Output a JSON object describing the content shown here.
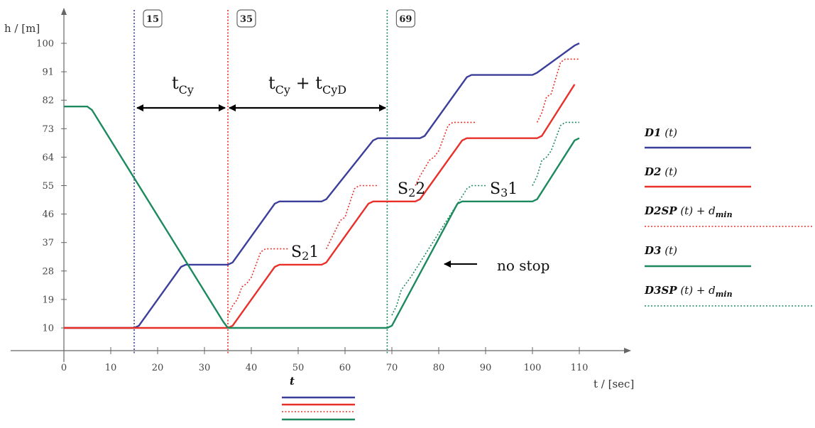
{
  "chart_data": {
    "type": "line",
    "xlabel": "t / [sec]",
    "ylabel": "h / [m]",
    "xlim": [
      0,
      110
    ],
    "ylim": [
      10,
      100
    ],
    "x_ticks": [
      0,
      10,
      20,
      30,
      40,
      50,
      60,
      70,
      80,
      90,
      100,
      110
    ],
    "y_ticks": [
      10,
      19,
      28,
      37,
      46,
      55,
      64,
      73,
      82,
      91,
      100
    ],
    "grid": false,
    "legend_position": "right",
    "series": [
      {
        "name": "D1 (t)",
        "color": "#3b3f9a",
        "style": "solid",
        "points": [
          [
            0,
            10
          ],
          [
            15,
            10
          ],
          [
            16,
            10.7
          ],
          [
            25,
            29.3
          ],
          [
            26,
            30
          ],
          [
            35,
            30
          ],
          [
            36,
            30.7
          ],
          [
            45,
            49.3
          ],
          [
            46,
            50
          ],
          [
            55,
            50
          ],
          [
            56,
            50.7
          ],
          [
            66,
            69.3
          ],
          [
            67,
            70
          ],
          [
            76,
            70
          ],
          [
            77,
            70.7
          ],
          [
            86,
            89.3
          ],
          [
            87,
            90
          ],
          [
            100,
            90
          ],
          [
            101,
            90.7
          ],
          [
            109,
            99.3
          ],
          [
            110,
            100
          ]
        ]
      },
      {
        "name": "D2 (t)",
        "color": "#e83028",
        "style": "solid",
        "points": [
          [
            0,
            10
          ],
          [
            35,
            10
          ],
          [
            36,
            10.7
          ],
          [
            45,
            29.3
          ],
          [
            46,
            30
          ],
          [
            55,
            30
          ],
          [
            56,
            30.7
          ],
          [
            65,
            49.3
          ],
          [
            66,
            50
          ],
          [
            75,
            50
          ],
          [
            76,
            50.7
          ],
          [
            85,
            69.3
          ],
          [
            86,
            70
          ],
          [
            101,
            70
          ],
          [
            102,
            70.7
          ],
          [
            109,
            87
          ]
        ]
      },
      {
        "name": "D2SP (t) + d_min",
        "color": "#e83028",
        "style": "dotted",
        "segments": [
          [
            [
              35,
              14
            ],
            [
              36,
              17
            ],
            [
              37,
              19
            ],
            [
              38,
              23
            ],
            [
              39,
              24
            ],
            [
              40,
              26
            ],
            [
              42,
              34
            ],
            [
              43,
              35
            ],
            [
              48,
              35
            ]
          ],
          [
            [
              56,
              35
            ],
            [
              57,
              38
            ],
            [
              58,
              41
            ],
            [
              59,
              44
            ],
            [
              60,
              45
            ],
            [
              62,
              54
            ],
            [
              63,
              55
            ],
            [
              67,
              55
            ]
          ],
          [
            [
              75,
              55
            ],
            [
              76,
              58
            ],
            [
              78,
              63
            ],
            [
              79,
              64
            ],
            [
              80,
              66
            ],
            [
              82,
              74
            ],
            [
              83,
              75
            ],
            [
              88,
              75
            ]
          ],
          [
            [
              101,
              75
            ],
            [
              102,
              78
            ],
            [
              103,
              83
            ],
            [
              104,
              84
            ],
            [
              106,
              94
            ],
            [
              107,
              95
            ],
            [
              110,
              95
            ]
          ]
        ]
      },
      {
        "name": "D3 (t)",
        "color": "#1c8a5e",
        "style": "solid",
        "points": [
          [
            0,
            80
          ],
          [
            5,
            80
          ],
          [
            6,
            78.9
          ],
          [
            34,
            12
          ],
          [
            35,
            10
          ],
          [
            69,
            10
          ],
          [
            70,
            10.7
          ],
          [
            84,
            49.3
          ],
          [
            85,
            50
          ],
          [
            100,
            50
          ],
          [
            101,
            50.7
          ],
          [
            109,
            69.3
          ],
          [
            110,
            70
          ]
        ]
      },
      {
        "name": "D3SP (t) + d_min",
        "color": "#1c8a5e",
        "style": "dotted",
        "segments": [
          [
            [
              70,
              14
            ],
            [
              71,
              17
            ],
            [
              72,
              22
            ],
            [
              73,
              24
            ],
            [
              74,
              26
            ],
            [
              86,
              54
            ],
            [
              87,
              55
            ],
            [
              90,
              55
            ]
          ],
          [
            [
              100,
              55
            ],
            [
              101,
              58
            ],
            [
              102,
              63
            ],
            [
              103,
              64
            ],
            [
              104,
              66
            ],
            [
              106,
              74
            ],
            [
              107,
              75
            ],
            [
              110,
              75
            ]
          ]
        ]
      }
    ],
    "vertical_markers": [
      {
        "x": 15,
        "label": "15",
        "color": "#3b3f9a"
      },
      {
        "x": 35,
        "label": "35",
        "color": "#e83028"
      },
      {
        "x": 69,
        "label": "69",
        "color": "#1c8a5e"
      }
    ],
    "annotations": {
      "tcy_label": "t",
      "tcy_sub": "Cy",
      "tcyd_label": "t",
      "tcyd_sub1": "Cy",
      "tcyd_plus": " + t",
      "tcyd_sub2": "CyD",
      "s21": {
        "main": "S",
        "sub": "2",
        "tail": "1"
      },
      "s22": {
        "main": "S",
        "sub": "2",
        "tail": "2"
      },
      "s31": {
        "main": "S",
        "sub": "3",
        "tail": "1"
      },
      "no_stop": "no stop"
    },
    "bottom_legend_title": "t",
    "legend": {
      "d1": "D1",
      "d2": "D2",
      "d2sp_main": "D2SP",
      "d3": "D3",
      "d3sp_main": "D3SP",
      "t_arg": " (t)",
      "plus": " + d",
      "min_sub": "min"
    }
  }
}
